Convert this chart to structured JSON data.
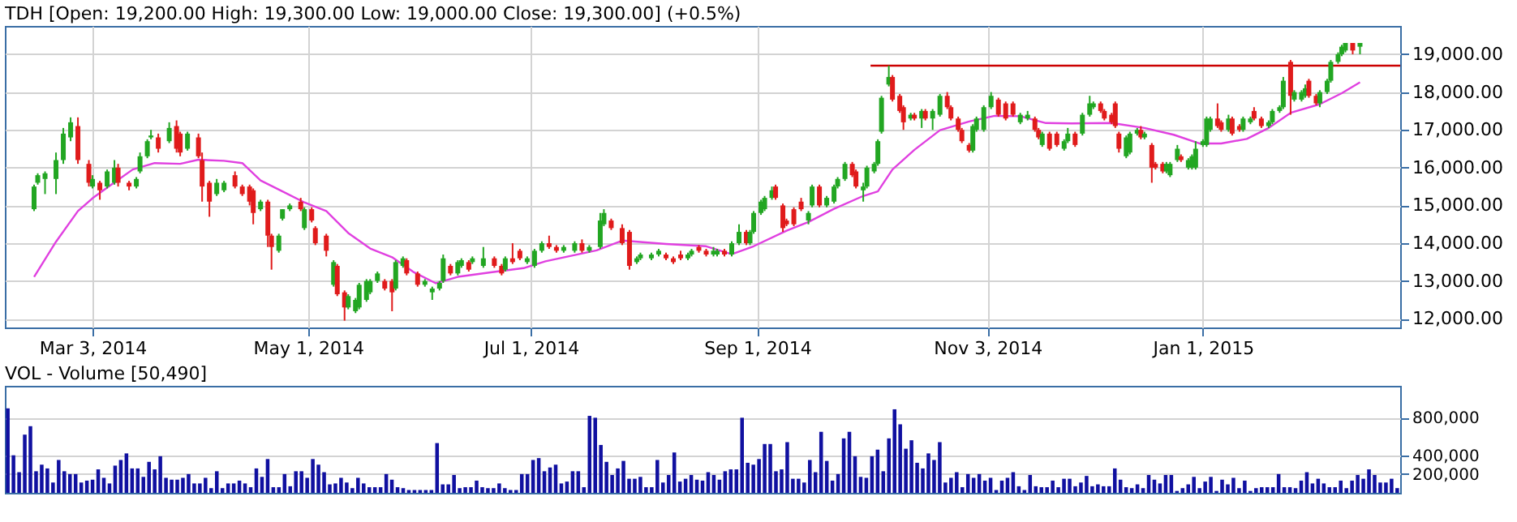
{
  "chart_data": [
    {
      "type": "candlestick",
      "title": "TDH [Open: 19,200.00  High: 19,300.00  Low: 19,000.00  Close: 19,300.00] (+0.5%)",
      "x": [
        "2014-02-15",
        "2014-02-16",
        "2014-02-18",
        "2014-02-21",
        "2014-02-23",
        "2014-02-25",
        "2014-02-27",
        "2014-03-02",
        "2014-03-03",
        "2014-03-05",
        "2014-03-07",
        "2014-03-09",
        "2014-03-10",
        "2014-03-13",
        "2014-03-15",
        "2014-03-16",
        "2014-03-18",
        "2014-03-19",
        "2014-03-21",
        "2014-03-24",
        "2014-03-26",
        "2014-03-27",
        "2014-03-29",
        "2014-04-01",
        "2014-04-02",
        "2014-04-04",
        "2014-04-06",
        "2014-04-08",
        "2014-04-11",
        "2014-04-13",
        "2014-04-15",
        "2014-04-16",
        "2014-04-18",
        "2014-04-20",
        "2014-04-21",
        "2014-04-23",
        "2014-04-24",
        "2014-04-26",
        "2014-04-29",
        "2014-04-30",
        "2014-05-02",
        "2014-05-03",
        "2014-05-06",
        "2014-05-08",
        "2014-05-09",
        "2014-05-11",
        "2014-05-12",
        "2014-05-14",
        "2014-05-15",
        "2014-05-17",
        "2014-05-18",
        "2014-05-20",
        "2014-05-22",
        "2014-05-24",
        "2014-05-25",
        "2014-05-27",
        "2014-05-28",
        "2014-05-31",
        "2014-06-02",
        "2014-06-04",
        "2014-06-06",
        "2014-06-07",
        "2014-06-09",
        "2014-06-11",
        "2014-06-12",
        "2014-06-14",
        "2014-06-15",
        "2014-06-18",
        "2014-06-21",
        "2014-06-23",
        "2014-06-24",
        "2014-06-26",
        "2014-06-28",
        "2014-06-30",
        "2014-07-02",
        "2014-07-04",
        "2014-07-06",
        "2014-07-08",
        "2014-07-10",
        "2014-07-13",
        "2014-07-15",
        "2014-07-17",
        "2014-07-20",
        "2014-07-21",
        "2014-07-23",
        "2014-07-26",
        "2014-07-28",
        "2014-07-30",
        "2014-07-31",
        "2014-08-03",
        "2014-08-05",
        "2014-08-07",
        "2014-08-09",
        "2014-08-11",
        "2014-08-13",
        "2014-08-14",
        "2014-08-16",
        "2014-08-18",
        "2014-08-20",
        "2014-08-21",
        "2014-08-23",
        "2014-08-25",
        "2014-08-27",
        "2014-08-29",
        "2014-08-30",
        "2014-08-31",
        "2014-09-02",
        "2014-09-03",
        "2014-09-05",
        "2014-09-06",
        "2014-09-08",
        "2014-09-09",
        "2014-09-11",
        "2014-09-13",
        "2014-09-15",
        "2014-09-16",
        "2014-09-18",
        "2014-09-20",
        "2014-09-22",
        "2014-09-23",
        "2014-09-25",
        "2014-09-27",
        "2014-09-28",
        "2014-09-30",
        "2014-10-01",
        "2014-10-03",
        "2014-10-04",
        "2014-10-05",
        "2014-10-07",
        "2014-10-08",
        "2014-10-10",
        "2014-10-11",
        "2014-10-13",
        "2014-10-14",
        "2014-10-16",
        "2014-10-17",
        "2014-10-19",
        "2014-10-21",
        "2014-10-23",
        "2014-10-24",
        "2014-10-26",
        "2014-10-27",
        "2014-10-29",
        "2014-10-30",
        "2014-10-31",
        "2014-11-02",
        "2014-11-04",
        "2014-11-06",
        "2014-11-08",
        "2014-11-10",
        "2014-11-12",
        "2014-11-14",
        "2014-11-16",
        "2014-11-17",
        "2014-11-18",
        "2014-11-20",
        "2014-11-22",
        "2014-11-24",
        "2014-11-25",
        "2014-11-27",
        "2014-11-29",
        "2014-12-01",
        "2014-12-02",
        "2014-12-04",
        "2014-12-05",
        "2014-12-07",
        "2014-12-08",
        "2014-12-09",
        "2014-12-11",
        "2014-12-12",
        "2014-12-14",
        "2014-12-15",
        "2014-12-16",
        "2014-12-18",
        "2014-12-19",
        "2014-12-21",
        "2014-12-22",
        "2014-12-23",
        "2014-12-25",
        "2014-12-26",
        "2014-12-28",
        "2014-12-29",
        "2014-12-30",
        "2015-01-01",
        "2015-01-02",
        "2015-01-03",
        "2015-01-05",
        "2015-01-06",
        "2015-01-08",
        "2015-01-09",
        "2015-01-11",
        "2015-01-12",
        "2015-01-14",
        "2015-01-15",
        "2015-01-17",
        "2015-01-19",
        "2015-01-20",
        "2015-01-22",
        "2015-01-23",
        "2015-01-25",
        "2015-01-26",
        "2015-01-28",
        "2015-01-29",
        "2015-01-30",
        "2015-02-01",
        "2015-02-02",
        "2015-02-04",
        "2015-02-05",
        "2015-02-07",
        "2015-02-08",
        "2015-02-09",
        "2015-02-11",
        "2015-02-13"
      ],
      "ohlc": [
        [
          14900,
          15550,
          14850,
          15500
        ],
        [
          15600,
          15850,
          15550,
          15800
        ],
        [
          15700,
          15900,
          15300,
          15850
        ],
        [
          15700,
          16400,
          15300,
          16200
        ],
        [
          16200,
          17050,
          16100,
          16900
        ],
        [
          16800,
          17330,
          16700,
          17200
        ],
        [
          17100,
          17330,
          16100,
          16200
        ],
        [
          16100,
          16200,
          15500,
          15600
        ],
        [
          15500,
          15800,
          15450,
          15700
        ],
        [
          15600,
          15650,
          15150,
          15400
        ],
        [
          15500,
          15950,
          15450,
          15900
        ],
        [
          15600,
          16200,
          15550,
          16000
        ],
        [
          16000,
          16100,
          15500,
          15600
        ],
        [
          15600,
          15650,
          15400,
          15500
        ],
        [
          15500,
          15750,
          15450,
          15700
        ],
        [
          15900,
          16400,
          15850,
          16300
        ],
        [
          16300,
          16750,
          16250,
          16700
        ],
        [
          16800,
          17000,
          16750,
          16850
        ],
        [
          16800,
          16900,
          16400,
          16500
        ],
        [
          16700,
          17200,
          16650,
          17050
        ],
        [
          17100,
          17250,
          16400,
          16500
        ],
        [
          16900,
          16950,
          16300,
          16400
        ],
        [
          16500,
          16950,
          16450,
          16900
        ],
        [
          16800,
          16900,
          16250,
          16300
        ],
        [
          16200,
          16400,
          15100,
          15500
        ],
        [
          15600,
          15650,
          14700,
          15100
        ],
        [
          15300,
          15700,
          15250,
          15600
        ],
        [
          15400,
          15650,
          15350,
          15600
        ],
        [
          15800,
          15900,
          15450,
          15500
        ],
        [
          15500,
          15550,
          15250,
          15300
        ],
        [
          15500,
          15550,
          15000,
          15100
        ],
        [
          15400,
          15450,
          14500,
          14800
        ],
        [
          14900,
          15150,
          14850,
          15100
        ],
        [
          15100,
          15150,
          13900,
          14200
        ],
        [
          14200,
          14250,
          13300,
          13900
        ],
        [
          13800,
          14250,
          13750,
          14200
        ],
        [
          14650,
          14900,
          14600,
          14900
        ],
        [
          14900,
          15050,
          14850,
          15000
        ],
        [
          15100,
          15200,
          14850,
          14900
        ],
        [
          14400,
          14950,
          14350,
          14900
        ],
        [
          14900,
          14950,
          14550,
          14600
        ],
        [
          14400,
          14450,
          13950,
          14000
        ],
        [
          14200,
          14250,
          13650,
          13800
        ],
        [
          12900,
          13550,
          12850,
          13500
        ],
        [
          13400,
          13450,
          12600,
          12650
        ],
        [
          12700,
          12750,
          11950,
          12300
        ],
        [
          12300,
          12650,
          12250,
          12600
        ],
        [
          12200,
          12550,
          12150,
          12500
        ],
        [
          12300,
          12950,
          12250,
          12900
        ],
        [
          12500,
          13050,
          12450,
          13000
        ],
        [
          12700,
          13050,
          12650,
          13000
        ],
        [
          13000,
          13250,
          12950,
          13200
        ],
        [
          13000,
          13050,
          12750,
          12800
        ],
        [
          13000,
          13050,
          12200,
          12700
        ],
        [
          12800,
          13550,
          12750,
          13500
        ],
        [
          13400,
          13650,
          13350,
          13600
        ],
        [
          13550,
          13600,
          13150,
          13200
        ],
        [
          13200,
          13250,
          12850,
          12900
        ],
        [
          12900,
          13050,
          12850,
          13000
        ],
        [
          12700,
          12850,
          12500,
          12800
        ],
        [
          12800,
          13000,
          12750,
          12950
        ],
        [
          13000,
          13700,
          12950,
          13600
        ],
        [
          13400,
          13450,
          13150,
          13200
        ],
        [
          13200,
          13550,
          13150,
          13500
        ],
        [
          13400,
          13600,
          13350,
          13550
        ],
        [
          13500,
          13550,
          13250,
          13300
        ],
        [
          13500,
          13650,
          13450,
          13600
        ],
        [
          13400,
          13900,
          13350,
          13600
        ],
        [
          13600,
          13650,
          13350,
          13400
        ],
        [
          13400,
          13450,
          13150,
          13200
        ],
        [
          13300,
          13650,
          13250,
          13600
        ],
        [
          13600,
          14000,
          13450,
          13500
        ],
        [
          13800,
          13850,
          13550,
          13600
        ],
        [
          13500,
          13650,
          13450,
          13600
        ],
        [
          13400,
          13850,
          13350,
          13800
        ],
        [
          13800,
          14050,
          13750,
          14000
        ],
        [
          14000,
          14200,
          13850,
          13900
        ],
        [
          13900,
          13950,
          13750,
          13800
        ],
        [
          13800,
          13950,
          13750,
          13900
        ],
        [
          13800,
          14050,
          13750,
          14000
        ],
        [
          14000,
          14100,
          13750,
          13800
        ],
        [
          13800,
          13950,
          13750,
          13900
        ],
        [
          13900,
          14800,
          13850,
          14600
        ],
        [
          14500,
          14900,
          14450,
          14800
        ],
        [
          14600,
          14650,
          14350,
          14400
        ],
        [
          14400,
          14500,
          13950,
          14000
        ],
        [
          14300,
          14350,
          13300,
          13400
        ],
        [
          13500,
          13650,
          13450,
          13600
        ],
        [
          13600,
          13750,
          13550,
          13700
        ],
        [
          13600,
          13750,
          13550,
          13700
        ],
        [
          13700,
          13850,
          13650,
          13800
        ],
        [
          13700,
          13750,
          13550,
          13600
        ],
        [
          13600,
          13650,
          13450,
          13500
        ],
        [
          13700,
          13800,
          13550,
          13600
        ],
        [
          13600,
          13750,
          13550,
          13700
        ],
        [
          13700,
          13850,
          13650,
          13800
        ],
        [
          13900,
          13950,
          13750,
          13800
        ],
        [
          13800,
          13850,
          13650,
          13700
        ],
        [
          13700,
          13900,
          13650,
          13800
        ],
        [
          13700,
          13850,
          13650,
          13800
        ],
        [
          13800,
          13850,
          13650,
          13700
        ],
        [
          13700,
          14050,
          13650,
          14000
        ],
        [
          14000,
          14500,
          13950,
          14300
        ],
        [
          14300,
          14350,
          13950,
          14000
        ],
        [
          14000,
          14350,
          13950,
          14300
        ],
        [
          14300,
          14850,
          14250,
          14800
        ],
        [
          14800,
          15150,
          14750,
          15100
        ],
        [
          14900,
          15250,
          14850,
          15200
        ],
        [
          15200,
          15500,
          15150,
          15400
        ],
        [
          15500,
          15550,
          15150,
          15200
        ],
        [
          15000,
          15050,
          14300,
          14400
        ],
        [
          14600,
          14650,
          14450,
          14500
        ],
        [
          14900,
          14950,
          14450,
          14500
        ],
        [
          15100,
          15200,
          14850,
          14900
        ],
        [
          14600,
          14850,
          14500,
          14800
        ],
        [
          15000,
          15550,
          14950,
          15500
        ],
        [
          15500,
          15550,
          14950,
          15000
        ],
        [
          15000,
          15250,
          14950,
          15200
        ],
        [
          15100,
          15550,
          15050,
          15500
        ],
        [
          15500,
          15750,
          15450,
          15700
        ],
        [
          15700,
          16150,
          15650,
          16100
        ],
        [
          16100,
          16150,
          15750,
          15800
        ],
        [
          15900,
          15950,
          15450,
          15500
        ],
        [
          15400,
          15600,
          15100,
          15500
        ],
        [
          15500,
          16050,
          15450,
          16000
        ],
        [
          15900,
          16150,
          15850,
          16100
        ],
        [
          16100,
          16750,
          16050,
          16700
        ],
        [
          16950,
          17900,
          16900,
          17850
        ],
        [
          18200,
          18700,
          18150,
          18400
        ],
        [
          18400,
          18450,
          17750,
          17800
        ],
        [
          17900,
          17950,
          17450,
          17500
        ],
        [
          17600,
          17650,
          17000,
          17200
        ],
        [
          17300,
          17450,
          17250,
          17400
        ],
        [
          17400,
          17450,
          17250,
          17300
        ],
        [
          17300,
          17550,
          17050,
          17500
        ],
        [
          17500,
          17550,
          17250,
          17300
        ],
        [
          17300,
          17550,
          17000,
          17500
        ],
        [
          17400,
          17950,
          17350,
          17900
        ],
        [
          17900,
          18000,
          17550,
          17600
        ],
        [
          17600,
          17650,
          17250,
          17300
        ],
        [
          17300,
          17350,
          16950,
          17000
        ],
        [
          17000,
          17050,
          16650,
          16700
        ],
        [
          16600,
          16650,
          16400,
          16450
        ],
        [
          16450,
          17150,
          16400,
          17100
        ],
        [
          17000,
          17350,
          16950,
          17300
        ],
        [
          17000,
          17650,
          16950,
          17600
        ],
        [
          17600,
          18000,
          17550,
          17900
        ],
        [
          17800,
          17850,
          17350,
          17400
        ],
        [
          17700,
          17750,
          17250,
          17300
        ],
        [
          17700,
          17750,
          17350,
          17400
        ],
        [
          17200,
          17450,
          17150,
          17400
        ],
        [
          17300,
          17500,
          17250,
          17400
        ],
        [
          17300,
          17350,
          16950,
          17000
        ],
        [
          17000,
          17050,
          16750,
          16800
        ],
        [
          16600,
          16950,
          16550,
          16900
        ],
        [
          16900,
          16950,
          16450,
          16500
        ],
        [
          16900,
          16950,
          16550,
          16600
        ],
        [
          16500,
          16750,
          16450,
          16700
        ],
        [
          16700,
          17050,
          16650,
          16900
        ],
        [
          16900,
          16950,
          16550,
          16600
        ],
        [
          16900,
          17450,
          16850,
          17400
        ],
        [
          17400,
          17900,
          17350,
          17700
        ],
        [
          17600,
          17750,
          17550,
          17700
        ],
        [
          17700,
          17750,
          17450,
          17500
        ],
        [
          17500,
          17550,
          17250,
          17300
        ],
        [
          17400,
          17450,
          17150,
          17200
        ],
        [
          17700,
          17750,
          17050,
          17100
        ],
        [
          16900,
          16950,
          16400,
          16500
        ],
        [
          16300,
          16850,
          16250,
          16800
        ],
        [
          16400,
          16950,
          16350,
          16900
        ],
        [
          16900,
          17050,
          16850,
          17000
        ],
        [
          17000,
          17100,
          16750,
          16800
        ],
        [
          16800,
          16950,
          16750,
          16900
        ],
        [
          16600,
          16650,
          15600,
          16000
        ],
        [
          16100,
          16150,
          15950,
          16000
        ],
        [
          16100,
          16150,
          15850,
          15900
        ],
        [
          15900,
          16150,
          15850,
          16100
        ],
        [
          15800,
          16150,
          15750,
          16100
        ],
        [
          16200,
          16600,
          16150,
          16500
        ],
        [
          16300,
          16350,
          16150,
          16200
        ],
        [
          16000,
          16250,
          15950,
          16200
        ],
        [
          16000,
          16350,
          15950,
          16300
        ],
        [
          16000,
          16700,
          15950,
          16500
        ],
        [
          16600,
          16750,
          16550,
          16700
        ],
        [
          16600,
          17350,
          16550,
          17300
        ],
        [
          17000,
          17350,
          16950,
          17300
        ],
        [
          17300,
          17700,
          17050,
          17100
        ],
        [
          17200,
          17250,
          16950,
          17000
        ],
        [
          17000,
          17400,
          16950,
          17300
        ],
        [
          17300,
          17350,
          16850,
          16900
        ],
        [
          17100,
          17150,
          16950,
          17000
        ],
        [
          17000,
          17350,
          16950,
          17300
        ],
        [
          17200,
          17350,
          17150,
          17300
        ],
        [
          17500,
          17600,
          17250,
          17300
        ],
        [
          17300,
          17350,
          17050,
          17100
        ],
        [
          17100,
          17250,
          17050,
          17200
        ],
        [
          17200,
          17550,
          17150,
          17500
        ],
        [
          17500,
          17650,
          17450,
          17600
        ],
        [
          17600,
          18400,
          17550,
          18300
        ],
        [
          18800,
          18850,
          17400,
          17900
        ],
        [
          17800,
          18050,
          17750,
          18000
        ],
        [
          17800,
          18050,
          17750,
          18000
        ],
        [
          17900,
          18200,
          17850,
          18100
        ],
        [
          18300,
          18350,
          17850,
          17900
        ],
        [
          17900,
          17950,
          17650,
          17700
        ],
        [
          17700,
          18050,
          17600,
          18000
        ],
        [
          18000,
          18350,
          17950,
          18300
        ],
        [
          18300,
          18850,
          18250,
          18800
        ],
        [
          18800,
          19050,
          18750,
          19000
        ],
        [
          19000,
          19250,
          18950,
          19200
        ],
        [
          19100,
          19300,
          19050,
          19300
        ],
        [
          19300,
          19300,
          19000,
          19100
        ],
        [
          19200,
          19300,
          19000,
          19300
        ]
      ],
      "colors": [
        "#22a622",
        "#22a622",
        "#22a622",
        "#22a622",
        "#22a622",
        "#22a622",
        "#e01b1b",
        "#e01b1b",
        "#22a622",
        "#e01b1b",
        "#22a622",
        "#22a622",
        "#e01b1b",
        "#e01b1b",
        "#22a622",
        "#22a622",
        "#22a622",
        "#22a622",
        "#e01b1b",
        "#22a622",
        "#e01b1b",
        "#e01b1b",
        "#22a622",
        "#e01b1b",
        "#e01b1b",
        "#e01b1b",
        "#22a622",
        "#22a622",
        "#e01b1b",
        "#e01b1b",
        "#e01b1b",
        "#e01b1b",
        "#22a622",
        "#e01b1b",
        "#e01b1b",
        "#22a622",
        "#22a622",
        "#22a622",
        "#e01b1b",
        "#22a622",
        "#e01b1b",
        "#e01b1b",
        "#e01b1b",
        "#22a622",
        "#e01b1b",
        "#e01b1b",
        "#22a622",
        "#22a622",
        "#22a622",
        "#22a622",
        "#22a622",
        "#22a622",
        "#e01b1b",
        "#e01b1b",
        "#22a622",
        "#22a622",
        "#e01b1b",
        "#e01b1b",
        "#22a622",
        "#22a622",
        "#22a622",
        "#22a622",
        "#e01b1b",
        "#22a622",
        "#22a622",
        "#e01b1b",
        "#22a622",
        "#22a622",
        "#e01b1b",
        "#e01b1b",
        "#22a622",
        "#e01b1b",
        "#e01b1b",
        "#22a622",
        "#22a622",
        "#22a622",
        "#e01b1b",
        "#e01b1b",
        "#22a622",
        "#22a622",
        "#e01b1b",
        "#22a622",
        "#22a622",
        "#22a622",
        "#e01b1b",
        "#e01b1b",
        "#e01b1b",
        "#22a622",
        "#22a622",
        "#22a622",
        "#22a622",
        "#e01b1b",
        "#e01b1b",
        "#e01b1b",
        "#22a622",
        "#22a622",
        "#e01b1b",
        "#e01b1b",
        "#22a622",
        "#22a622",
        "#e01b1b",
        "#22a622",
        "#22a622",
        "#e01b1b",
        "#22a622",
        "#22a622",
        "#22a622",
        "#22a622",
        "#22a622",
        "#e01b1b",
        "#e01b1b",
        "#e01b1b",
        "#e01b1b",
        "#e01b1b",
        "#22a622",
        "#22a622",
        "#e01b1b",
        "#22a622",
        "#22a622",
        "#22a622",
        "#22a622",
        "#e01b1b",
        "#e01b1b",
        "#22a622",
        "#22a622",
        "#22a622",
        "#22a622",
        "#22a622",
        "#22a622",
        "#e01b1b",
        "#e01b1b",
        "#e01b1b",
        "#22a622",
        "#e01b1b",
        "#22a622",
        "#e01b1b",
        "#22a622",
        "#22a622",
        "#e01b1b",
        "#e01b1b",
        "#e01b1b",
        "#e01b1b",
        "#e01b1b",
        "#22a622",
        "#22a622",
        "#22a622",
        "#22a622",
        "#e01b1b",
        "#e01b1b",
        "#e01b1b",
        "#22a622",
        "#22a622",
        "#e01b1b",
        "#e01b1b",
        "#22a622",
        "#e01b1b",
        "#e01b1b",
        "#22a622",
        "#22a622",
        "#e01b1b",
        "#22a622",
        "#22a622",
        "#22a622",
        "#e01b1b",
        "#e01b1b",
        "#e01b1b",
        "#e01b1b",
        "#e01b1b",
        "#22a622",
        "#22a622",
        "#22a622",
        "#e01b1b",
        "#22a622",
        "#e01b1b",
        "#e01b1b",
        "#e01b1b",
        "#22a622",
        "#22a622",
        "#22a622",
        "#e01b1b",
        "#22a622",
        "#22a622",
        "#22a622",
        "#22a622",
        "#22a622",
        "#22a622",
        "#e01b1b",
        "#e01b1b",
        "#22a622",
        "#e01b1b",
        "#e01b1b",
        "#22a622",
        "#22a622",
        "#e01b1b",
        "#e01b1b",
        "#22a622",
        "#22a622",
        "#22a622",
        "#22a622",
        "#e01b1b",
        "#22a622",
        "#22a622",
        "#22a622",
        "#e01b1b",
        "#e01b1b",
        "#22a622",
        "#22a622",
        "#22a622",
        "#22a622",
        "#22a622",
        "#22a622",
        "#e01b1b",
        "#22a622"
      ],
      "series": [
        {
          "type": "line",
          "color": "#e040e0",
          "x": [
            "2014-02-15",
            "2014-02-21",
            "2014-02-27",
            "2014-03-03",
            "2014-03-08",
            "2014-03-14",
            "2014-03-20",
            "2014-03-27",
            "2014-04-01",
            "2014-04-08",
            "2014-04-13",
            "2014-04-18",
            "2014-04-24",
            "2014-04-30",
            "2014-05-06",
            "2014-05-12",
            "2014-05-18",
            "2014-05-24",
            "2014-05-30",
            "2014-06-05",
            "2014-06-11",
            "2014-06-20",
            "2014-06-29",
            "2014-07-05",
            "2014-07-19",
            "2014-07-26",
            "2014-08-07",
            "2014-08-18",
            "2014-08-25",
            "2014-08-31",
            "2014-09-09",
            "2014-09-15",
            "2014-09-22",
            "2014-09-30",
            "2014-10-04",
            "2014-10-08",
            "2014-10-14",
            "2014-10-21",
            "2014-10-29",
            "2014-11-05",
            "2014-11-12",
            "2014-11-19",
            "2014-11-26",
            "2014-12-07",
            "2014-12-16",
            "2014-12-24",
            "2014-12-31",
            "2015-01-06",
            "2015-01-13",
            "2015-01-19",
            "2015-01-25",
            "2015-02-02",
            "2015-02-08",
            "2015-02-13"
          ],
          "values": [
            13110,
            14040,
            14850,
            15190,
            15540,
            15950,
            16120,
            16100,
            16210,
            16180,
            16120,
            15660,
            15370,
            15080,
            14850,
            14270,
            13860,
            13630,
            13230,
            12940,
            13110,
            13230,
            13340,
            13520,
            13810,
            14070,
            13980,
            13920,
            13710,
            13920,
            14330,
            14560,
            14910,
            15250,
            15370,
            15950,
            16470,
            16990,
            17220,
            17370,
            17360,
            17180,
            17170,
            17180,
            17050,
            16870,
            16640,
            16640,
            16760,
            17050,
            17450,
            17680,
            17970,
            18260
          ]
        },
        {
          "type": "line",
          "color": "#cc0000",
          "x": [
            "2014-10-02",
            "2015-02-24"
          ],
          "values": [
            18700,
            18700
          ]
        }
      ],
      "xlim": [
        "2014-02-07",
        "2015-02-24"
      ],
      "xticks": [
        {
          "value": "2014-03-03",
          "label": "Mar 3, 2014"
        },
        {
          "value": "2014-05-01",
          "label": "May 1, 2014"
        },
        {
          "value": "2014-07-01",
          "label": "Jul 1, 2014"
        },
        {
          "value": "2014-09-01",
          "label": "Sep 1, 2014"
        },
        {
          "value": "2014-11-03",
          "label": "Nov 3, 2014"
        },
        {
          "value": "2015-01-01",
          "label": "Jan 1, 2015"
        }
      ],
      "ylim": [
        11770,
        19750
      ],
      "yticks": [
        {
          "value": 12000,
          "label": "12,000.00"
        },
        {
          "value": 13000,
          "label": "13,000.00"
        },
        {
          "value": 14000,
          "label": "14,000.00"
        },
        {
          "value": 15000,
          "label": "15,000.00"
        },
        {
          "value": 16000,
          "label": "16,000.00"
        },
        {
          "value": 17000,
          "label": "17,000.00"
        },
        {
          "value": 18000,
          "label": "18,000.00"
        },
        {
          "value": 19000,
          "label": "19,000.00"
        }
      ],
      "grid": true
    },
    {
      "type": "bar",
      "title": "VOL - Volume [50,490]",
      "categories": [
        null,
        null,
        null,
        null,
        null,
        null,
        null,
        null,
        null,
        null,
        null,
        null,
        null,
        null,
        null,
        null,
        null,
        null,
        null,
        null,
        null,
        null,
        null,
        null,
        null,
        null,
        null,
        null,
        null,
        null,
        null,
        null,
        null,
        null,
        null,
        null,
        null,
        null,
        null,
        null,
        null,
        null,
        null,
        null,
        null,
        null,
        null,
        null,
        null,
        null,
        null,
        null,
        null,
        null,
        null,
        null,
        null,
        null,
        null,
        null,
        null,
        null,
        null,
        null,
        null,
        null,
        null,
        null,
        null,
        null,
        null,
        null,
        null,
        null,
        null,
        null,
        null,
        null,
        null,
        null,
        null,
        null,
        null,
        null,
        null,
        null,
        null,
        null,
        null,
        null,
        null,
        null,
        null,
        null,
        null,
        null,
        null,
        null,
        null,
        null,
        null,
        null,
        null,
        null,
        null,
        null,
        null,
        null,
        null,
        null,
        null,
        null,
        null,
        null,
        null,
        null,
        null,
        null,
        null,
        null,
        null,
        null,
        null,
        null,
        null,
        null,
        null,
        null,
        null,
        null,
        null,
        null,
        null,
        null,
        null,
        null,
        null,
        null,
        null,
        null,
        null,
        null,
        null,
        null,
        null,
        null,
        null,
        null,
        null,
        null,
        null,
        null,
        null,
        null,
        null,
        null,
        null,
        null,
        null,
        null,
        null,
        null,
        null,
        null,
        null,
        null,
        null,
        null,
        null,
        null,
        null,
        null,
        null,
        null,
        null,
        null,
        null,
        null,
        null,
        null,
        null,
        null,
        null,
        null,
        null,
        null,
        null,
        null,
        null,
        null,
        null,
        null,
        null,
        null,
        null,
        null,
        null,
        null,
        null,
        null,
        null,
        null,
        null,
        null,
        null,
        null,
        null,
        null,
        null,
        null,
        null,
        null,
        null,
        null,
        null,
        null,
        null,
        null,
        null,
        null,
        null,
        null,
        null,
        null,
        null,
        null,
        null,
        null,
        null,
        null,
        null,
        null,
        null,
        null,
        null,
        null,
        null,
        null,
        null,
        null,
        null,
        null,
        null,
        null,
        null,
        null,
        null
      ],
      "values": [
        900000,
        400000,
        220000,
        620000,
        710000,
        230000,
        300000,
        260000,
        110000,
        350000,
        230000,
        200000,
        200000,
        110000,
        130000,
        140000,
        250000,
        160000,
        100000,
        290000,
        350000,
        420000,
        260000,
        260000,
        170000,
        330000,
        250000,
        390000,
        160000,
        140000,
        140000,
        160000,
        200000,
        100000,
        100000,
        160000,
        50000,
        230000,
        50000,
        100000,
        100000,
        130000,
        100000,
        60000,
        260000,
        170000,
        360000,
        60000,
        60000,
        200000,
        70000,
        230000,
        230000,
        160000,
        360000,
        300000,
        220000,
        90000,
        100000,
        160000,
        110000,
        50000,
        160000,
        100000,
        60000,
        60000,
        60000,
        200000,
        140000,
        60000,
        50000,
        30000,
        30000,
        30000,
        30000,
        30000,
        530000,
        90000,
        90000,
        190000,
        50000,
        60000,
        60000,
        130000,
        60000,
        50000,
        50000,
        100000,
        50000,
        30000,
        30000,
        200000,
        200000,
        350000,
        370000,
        230000,
        270000,
        300000,
        100000,
        120000,
        230000,
        230000,
        60000,
        820000,
        800000,
        510000,
        330000,
        190000,
        260000,
        340000,
        150000,
        150000,
        170000,
        60000,
        60000,
        350000,
        110000,
        190000,
        430000,
        120000,
        150000,
        190000,
        140000,
        130000,
        220000,
        190000,
        140000,
        230000,
        250000,
        250000,
        800000,
        320000,
        300000,
        360000,
        520000,
        520000,
        230000,
        250000,
        540000,
        150000,
        150000,
        110000,
        350000,
        220000,
        650000,
        340000,
        130000,
        200000,
        580000,
        650000,
        390000,
        170000,
        160000,
        390000,
        460000,
        230000,
        580000,
        890000,
        730000,
        470000,
        560000,
        320000,
        260000,
        420000,
        350000,
        540000,
        110000,
        160000,
        220000,
        60000,
        200000,
        160000,
        200000,
        130000,
        160000,
        30000,
        130000,
        160000,
        220000,
        70000,
        30000,
        190000,
        70000,
        60000,
        60000,
        130000,
        60000,
        150000,
        150000,
        70000,
        110000,
        180000,
        70000,
        90000,
        70000,
        70000,
        260000,
        140000,
        60000,
        50000,
        90000,
        50000,
        190000,
        140000,
        100000,
        190000,
        190000,
        20000,
        50000,
        90000,
        170000,
        50000,
        120000,
        170000,
        20000,
        140000,
        90000,
        160000,
        50000,
        130000,
        20000,
        50000,
        60000,
        60000,
        60000,
        200000,
        60000,
        60000,
        50000,
        130000,
        220000,
        100000,
        150000,
        100000,
        60000,
        60000,
        130000,
        50000,
        130000,
        190000,
        150000,
        250000,
        190000,
        110000,
        110000,
        150000,
        50490
      ],
      "color": "#1010a0",
      "ylim": [
        0,
        1140000
      ],
      "yticks": [
        {
          "value": 200000,
          "label": "200,000"
        },
        {
          "value": 400000,
          "label": "400,000"
        },
        {
          "value": 800000,
          "label": "800,000"
        }
      ],
      "grid": "y",
      "tick_labels": "y"
    }
  ]
}
